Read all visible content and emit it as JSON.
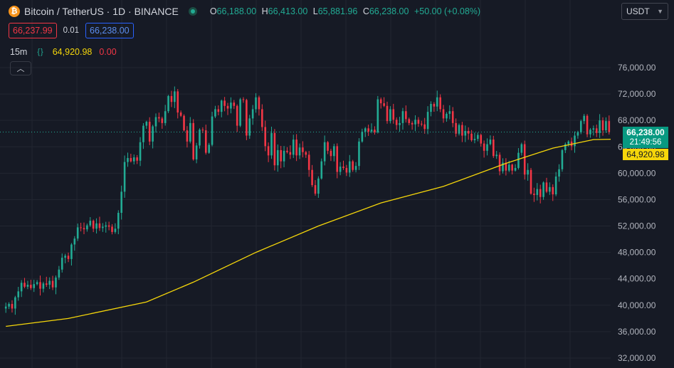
{
  "header": {
    "symbol": "Bitcoin / TetherUS · 1D · BINANCE",
    "symbol_icon": "bitcoin-icon",
    "ohlc": {
      "o_label": "O",
      "o": "66,188.00",
      "h_label": "H",
      "h": "66,413.00",
      "l_label": "L",
      "l": "65,881.96",
      "c_label": "C",
      "c": "66,238.00",
      "change": "+50.00 (+0.08%)"
    },
    "bid": "66,237.99",
    "spread": "0.01",
    "ask": "66,238.00",
    "currency": "USDT"
  },
  "indicator": {
    "name": "15m",
    "icon": "code-braces-icon",
    "value": "64,920.98",
    "change": "0.00"
  },
  "price_tags": {
    "last_price": "66,238.00",
    "countdown": "21:49:56",
    "ma_value": "64,920.98"
  },
  "colors": {
    "up": "#22ab94",
    "down": "#f23645",
    "ma": "#f5d60a",
    "background": "#161a25",
    "grid": "#222631"
  },
  "chart_data": {
    "type": "candlestick",
    "y_ticks": [
      "32,000.00",
      "36,000.00",
      "40,000.00",
      "44,000.00",
      "48,000.00",
      "52,000.00",
      "56,000.00",
      "60,000.00",
      "64,000.00",
      "68,000.00",
      "72,000.00",
      "76,000.00"
    ],
    "ylim": [
      31000,
      78000
    ],
    "last_price": 66238,
    "ma_last": 64920.98,
    "close": [
      39800,
      40200,
      39500,
      41200,
      42100,
      43400,
      42800,
      43100,
      42600,
      43200,
      43500,
      42500,
      43300,
      43100,
      43700,
      42700,
      44200,
      45400,
      47200,
      47500,
      47000,
      49200,
      50100,
      51800,
      51700,
      51500,
      52100,
      52800,
      51600,
      52400,
      51700,
      51900,
      52100,
      51900,
      51100,
      51600,
      54000,
      57200,
      61700,
      62300,
      61800,
      62400,
      61900,
      64700,
      67200,
      67800,
      64800,
      67100,
      68500,
      68300,
      67600,
      69400,
      71700,
      70800,
      72400,
      69200,
      68700,
      66500,
      64800,
      67600,
      62100,
      64200,
      66600,
      66500,
      63100,
      64300,
      68600,
      69700,
      69300,
      71000,
      70200,
      69800,
      70700,
      70200,
      67200,
      71200,
      71100,
      65700,
      68300,
      69700,
      71500,
      69700,
      67000,
      64100,
      62700,
      66100,
      61200,
      63500,
      61800,
      63400,
      63200,
      62800,
      65100,
      62700,
      63900,
      63200,
      62800,
      60500,
      58200,
      56900,
      59200,
      61800,
      64700,
      63400,
      62600,
      64100,
      60200,
      61000,
      60800,
      60100,
      61800,
      60500,
      61100,
      64800,
      66300,
      66800,
      66300,
      66600,
      66200,
      71200,
      70600,
      70200,
      67900,
      69700,
      68100,
      67300,
      67600,
      69400,
      68200,
      67600,
      67400,
      68100,
      67500,
      67400,
      66700,
      69300,
      70500,
      70100,
      71500,
      69700,
      68300,
      69000,
      69400,
      67600,
      66000,
      67300,
      65700,
      66400,
      66000,
      65000,
      65200,
      65800,
      64500,
      63400,
      64400,
      65100,
      62600,
      62800,
      60300,
      61600,
      60400,
      61300,
      60400,
      60800,
      63100,
      64400,
      59800,
      60500,
      56900,
      56700,
      57600,
      56400,
      58600,
      57200,
      57900,
      56800,
      59500,
      60600,
      63500,
      64400,
      64800,
      64100,
      65700,
      66200,
      67900,
      68700,
      65900,
      66600,
      66800,
      66100,
      68000,
      66500,
      67900,
      66238
    ],
    "ma": {
      "name": "15m",
      "start": 36800,
      "points": [
        [
          0,
          36800
        ],
        [
          20,
          38000
        ],
        [
          45,
          40500
        ],
        [
          60,
          43500
        ],
        [
          80,
          48000
        ],
        [
          100,
          52000
        ],
        [
          120,
          55500
        ],
        [
          140,
          58000
        ],
        [
          160,
          61500
        ],
        [
          175,
          63800
        ],
        [
          188,
          65100
        ],
        [
          200,
          65200
        ],
        [
          212,
          64600
        ],
        [
          222,
          64300
        ],
        [
          229,
          64100
        ]
      ]
    }
  }
}
